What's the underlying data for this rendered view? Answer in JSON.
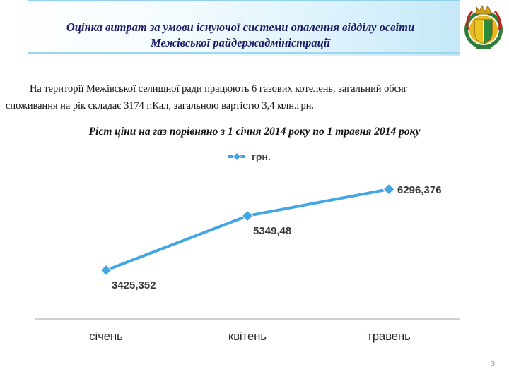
{
  "slide": {
    "title_line1": "Оцінка витрат за умови існуючої системи опалення відділу освіти",
    "title_line2": "Межівської райдержадміністрації",
    "body_line1": "На території  Межівської селищної ради працюють 6  газових котелень, загальний обсяг",
    "body_line2": "споживання  на рік складає 3174 г.Кал, загальною вартістю 3,4 млн.грн.",
    "page_number": "3"
  },
  "colors": {
    "series": "#41a6e3",
    "marker": "#41a6e3",
    "axis": "#d0d0d0"
  },
  "chart_data": {
    "type": "line",
    "title": "Ріст  ціни на газ порівняно з 1 січня 2014 року по 1 травня 2014 року",
    "categories": [
      "січень",
      "квітень",
      "травень"
    ],
    "series": [
      {
        "name": "грн.",
        "values": [
          3425.352,
          5349.48,
          6296.376
        ],
        "labels": [
          "3425,352",
          "5349,48",
          "6296,376"
        ]
      }
    ],
    "ylim": [
      2000,
      7000
    ],
    "legend": "top",
    "grid": false
  }
}
